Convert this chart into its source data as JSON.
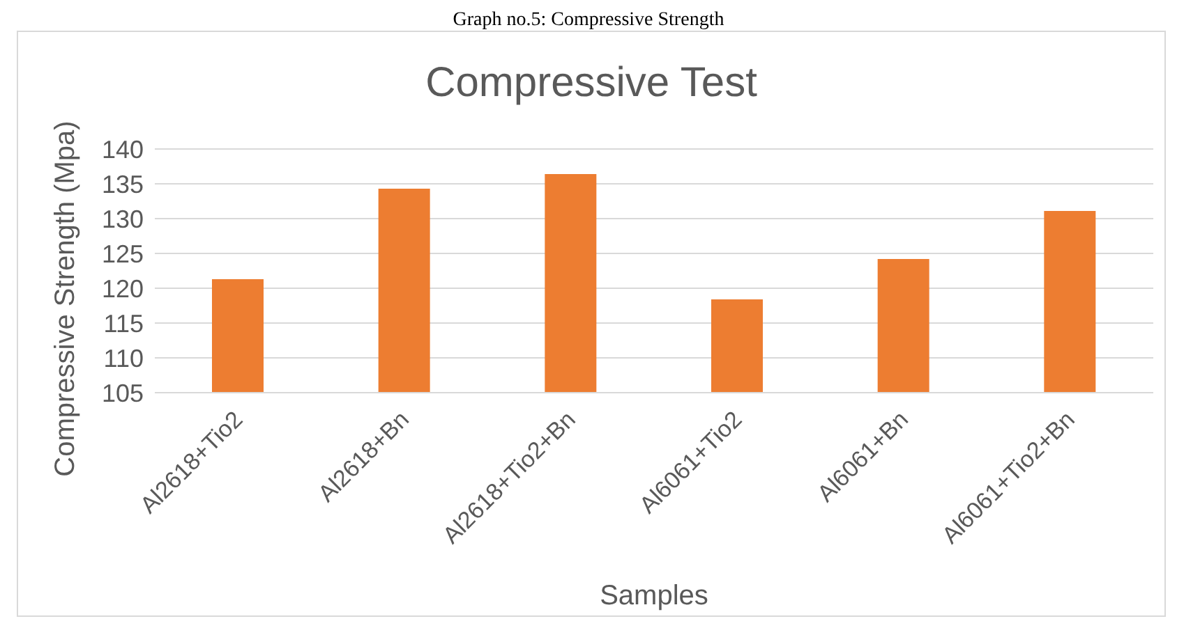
{
  "chart_data": {
    "type": "bar",
    "title": "Compressive Test",
    "xlabel": "Samples",
    "ylabel": "Compressive Strength (Mpa)",
    "annotations": [
      "Graph no.5: Compressive Strength"
    ],
    "categories": [
      "Al2618+Tio2",
      "Al2618+Bn",
      "Al2618+Tio2+Bn",
      "Al6061+Tio2",
      "Al6061+Bn",
      "Al6061+Tio2+Bn"
    ],
    "values": [
      121.3,
      134.3,
      136.4,
      118.4,
      124.2,
      131.1
    ],
    "color": "#ed7d31",
    "ylim": [
      105,
      140
    ],
    "yticks": [
      105,
      110,
      115,
      120,
      125,
      130,
      135,
      140
    ],
    "grid": "y",
    "legend": false
  }
}
